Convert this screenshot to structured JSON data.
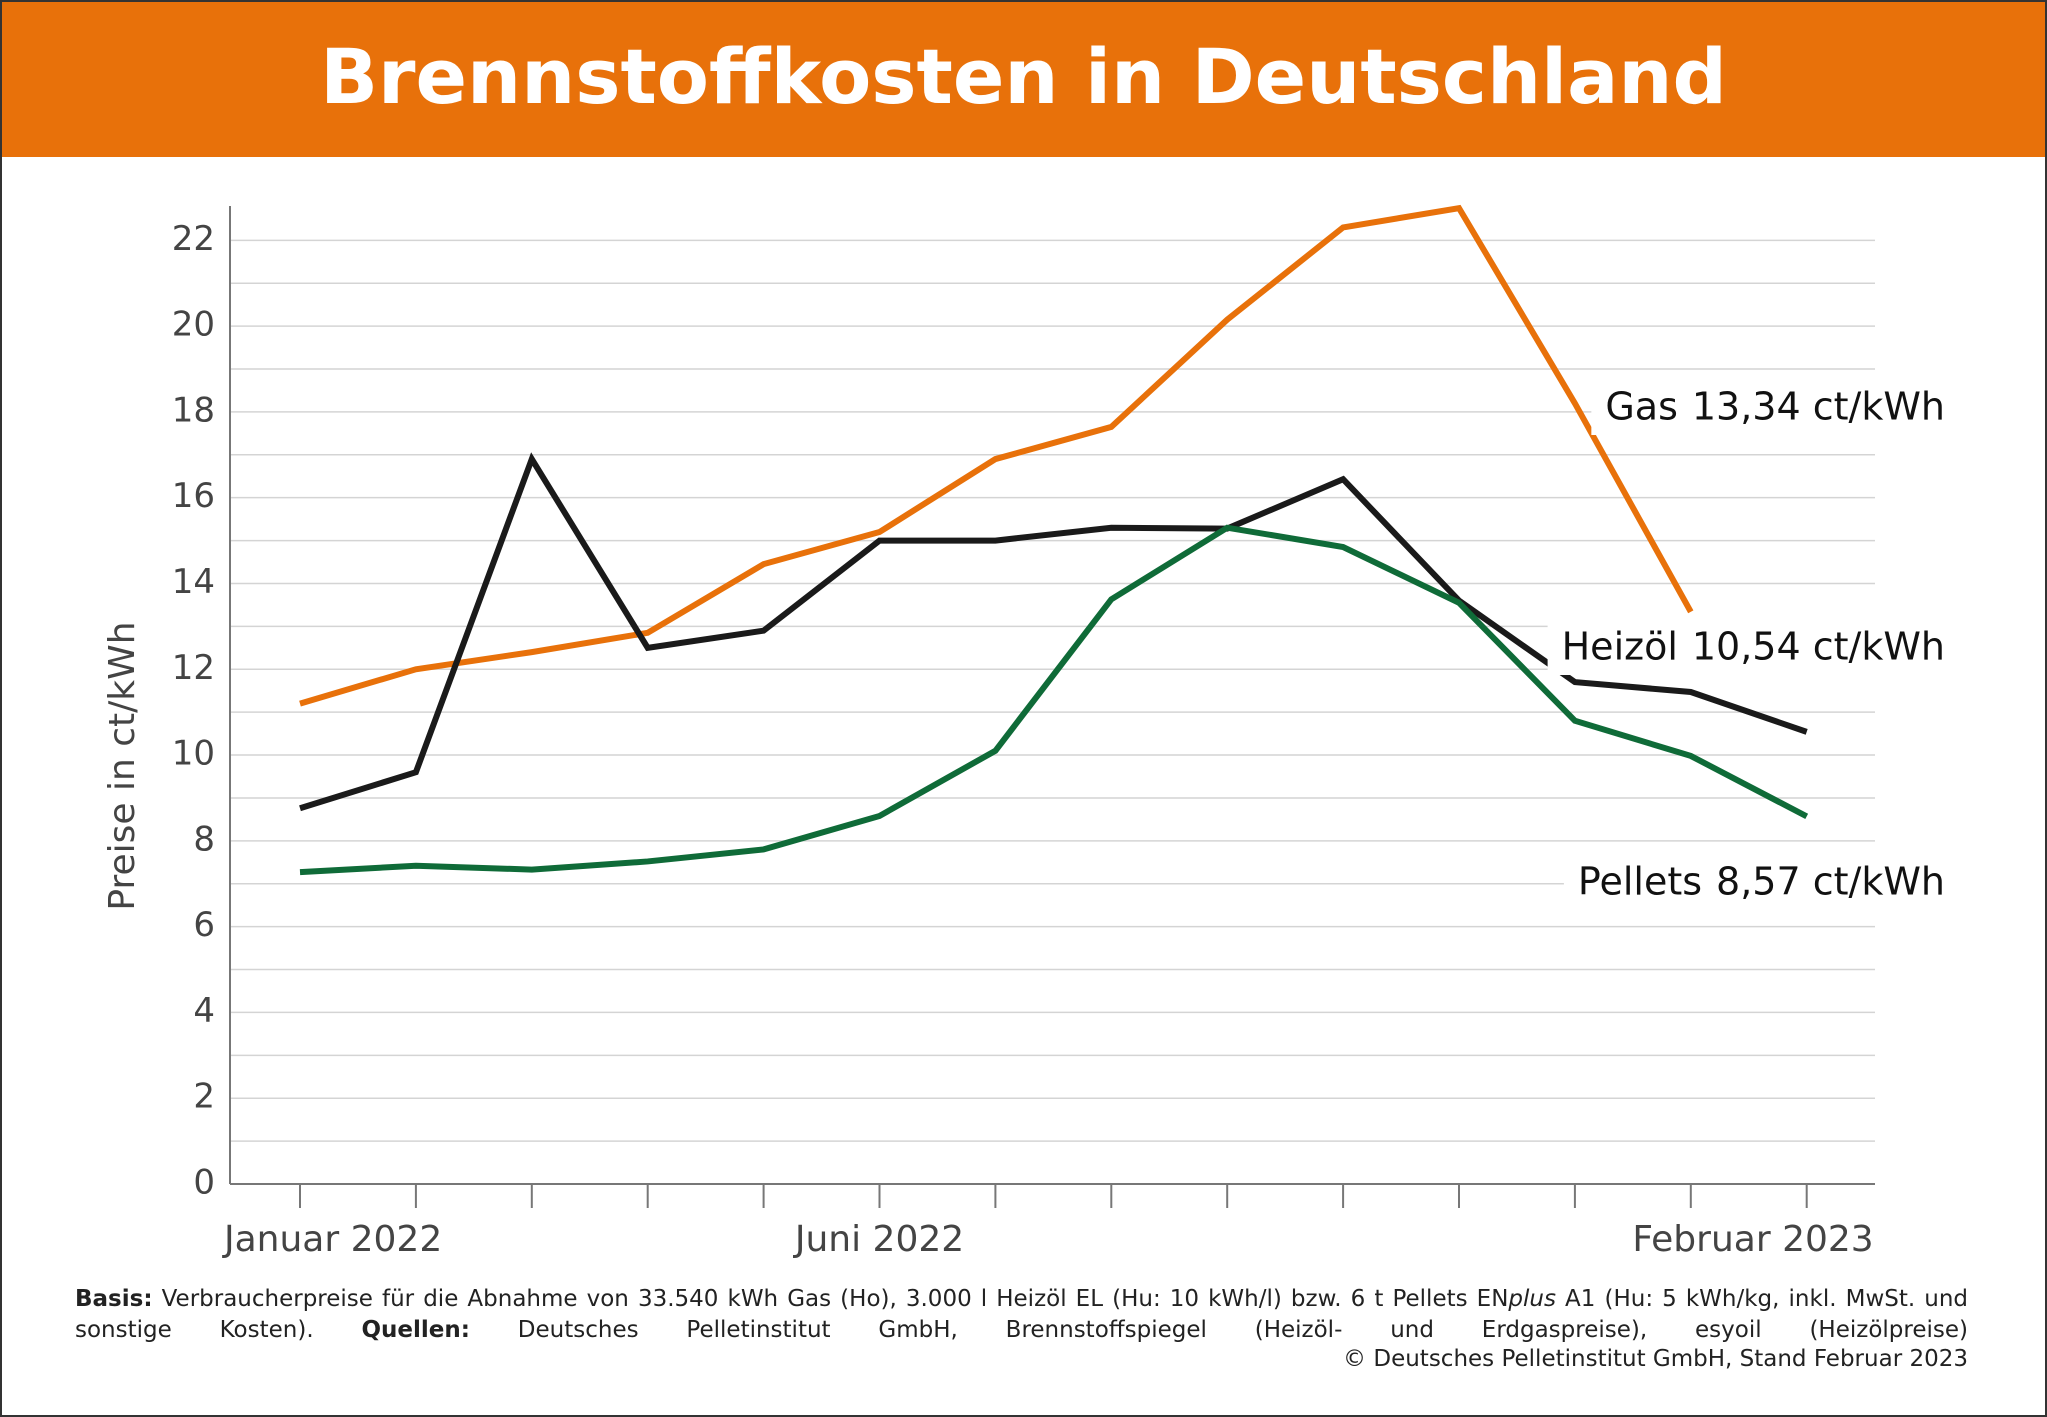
{
  "chart_data": {
    "type": "line",
    "title": "Brennstoffkosten in Deutschland",
    "ylabel": "Preise in ct/kWh",
    "categories": [
      "Januar 2022",
      null,
      null,
      null,
      null,
      "Juni 2022",
      null,
      null,
      null,
      null,
      null,
      null,
      null,
      "Februar 2023"
    ],
    "ylim": [
      0,
      22.8
    ],
    "yticks": [
      0,
      2,
      4,
      6,
      8,
      10,
      12,
      14,
      16,
      18,
      20,
      22
    ],
    "y_minor_ticks": [
      1,
      3,
      5,
      7,
      9,
      11,
      13,
      15,
      17,
      19,
      21
    ],
    "grid": true,
    "series": [
      {
        "name": "Gas",
        "color": "#e8710a",
        "values": [
          11.2,
          12.0,
          12.4,
          12.85,
          14.45,
          15.2,
          16.9,
          17.65,
          20.15,
          22.3,
          22.75,
          18.2,
          13.34,
          null
        ],
        "value_labels": [
          null,
          null,
          null,
          null,
          null,
          null,
          null,
          null,
          null,
          null,
          null,
          null,
          "13,34 ct/kWh",
          null
        ]
      },
      {
        "name": "Heizöl",
        "color": "#1a1a1a",
        "values": [
          8.76,
          9.6,
          16.9,
          12.5,
          12.9,
          15.0,
          15.0,
          15.3,
          15.28,
          16.43,
          13.6,
          11.7,
          11.47,
          10.54
        ],
        "value_labels": [
          null,
          null,
          null,
          null,
          null,
          null,
          null,
          null,
          null,
          null,
          null,
          null,
          null,
          "10,54 ct/kWh"
        ]
      },
      {
        "name": "Pellets",
        "color": "#0f6b38",
        "values": [
          7.27,
          7.42,
          7.33,
          7.52,
          7.8,
          8.58,
          10.1,
          13.63,
          15.3,
          14.85,
          13.55,
          10.8,
          9.98,
          8.57
        ],
        "value_labels": [
          null,
          null,
          null,
          null,
          null,
          null,
          null,
          null,
          null,
          null,
          null,
          null,
          null,
          "8,57 ct/kWh"
        ]
      }
    ]
  },
  "footer": {
    "basis_label": "Basis:",
    "basis_text": "Verbraucherpreise für die Abnahme von 33.540 kWh Gas (Ho), 3.000 l Heizöl EL (Hu: 10 kWh/l) bzw. 6 t Pellets EN",
    "basis_italic": "plus",
    "basis_text_end": "A1 (Hu: 5 kWh/kg, inkl. MwSt. und sonstige Kosten).",
    "quellen_label": "Quellen:",
    "quellen_text": "Deutsches Pelletinstitut GmbH, Brennstoffspiegel (Heizöl- und Erdgaspreise), esyoil (Heizölpreise)",
    "copyright": "© Deutsches Pelletinstitut GmbH, Stand Februar 2023"
  }
}
